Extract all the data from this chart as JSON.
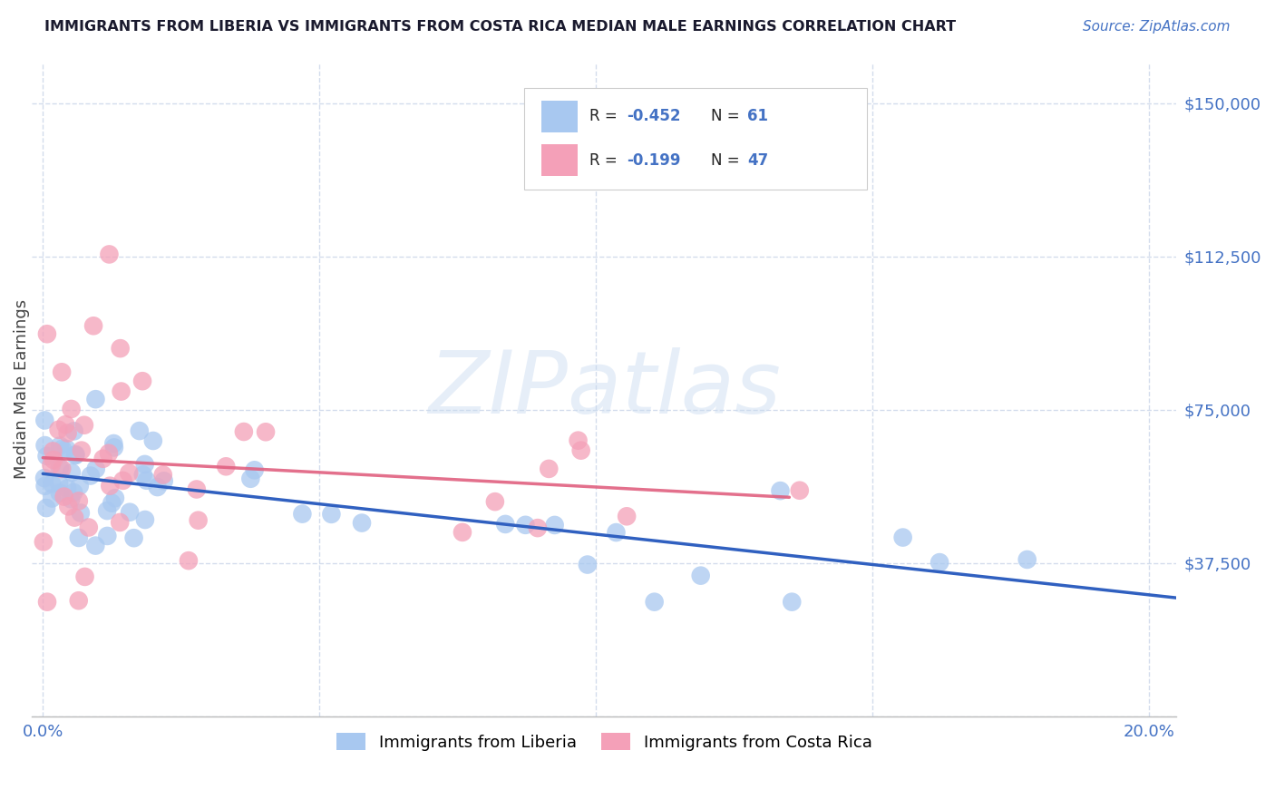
{
  "title": "IMMIGRANTS FROM LIBERIA VS IMMIGRANTS FROM COSTA RICA MEDIAN MALE EARNINGS CORRELATION CHART",
  "source": "Source: ZipAtlas.com",
  "ylabel": "Median Male Earnings",
  "xlim": [
    -0.002,
    0.205
  ],
  "ylim": [
    0,
    160000
  ],
  "yticks": [
    0,
    37500,
    75000,
    112500,
    150000
  ],
  "ytick_labels": [
    "",
    "$37,500",
    "$75,000",
    "$112,500",
    "$150,000"
  ],
  "xticks": [
    0.0,
    0.05,
    0.1,
    0.15,
    0.2
  ],
  "xtick_labels": [
    "0.0%",
    "",
    "",
    "",
    "20.0%"
  ],
  "legend_liberia": "Immigrants from Liberia",
  "legend_costa_rica": "Immigrants from Costa Rica",
  "R_liberia": -0.452,
  "N_liberia": 61,
  "R_costa_rica": -0.199,
  "N_costa_rica": 47,
  "color_liberia": "#a8c8f0",
  "color_costa_rica": "#f4a0b8",
  "line_color_liberia": "#3060c0",
  "line_color_costa_rica": "#e06080",
  "watermark": "ZIPatlas",
  "title_color": "#1a1a2e",
  "axis_color": "#4472c4",
  "background_color": "#ffffff",
  "grid_color": "#c8d4e8"
}
